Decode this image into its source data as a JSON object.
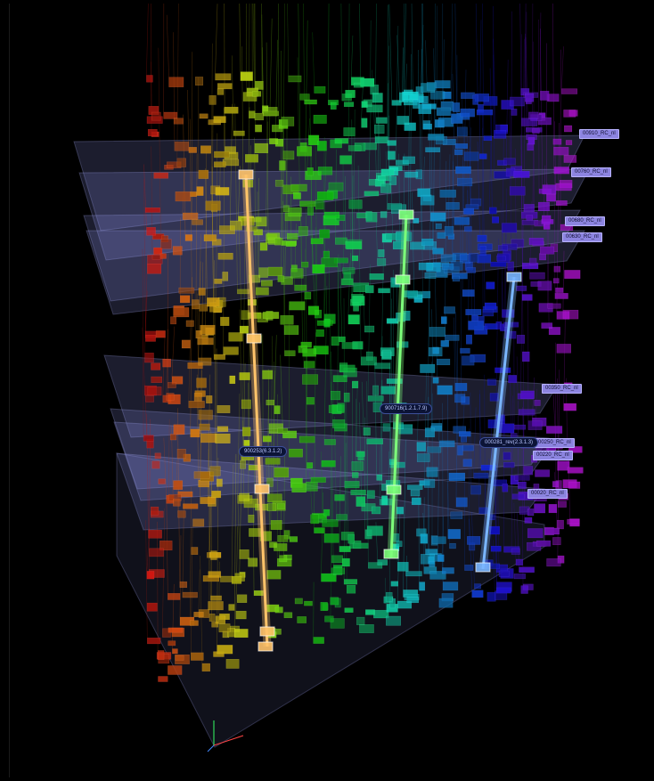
{
  "plane_labels": [
    {
      "text": "00910_RC_nl"
    },
    {
      "text": "00760_RC_nl"
    },
    {
      "text": "00680_RC_nl"
    },
    {
      "text": "00630_RC_nl"
    },
    {
      "text": "00350_RC_nl"
    },
    {
      "text": "00250_RC_nl"
    },
    {
      "text": "00220_RC_nl"
    },
    {
      "text": "00020_RC_nl"
    }
  ],
  "beam_labels": [
    {
      "text": "900253(6.3.1.2)"
    },
    {
      "text": "900716(1.2.1.7.9)"
    },
    {
      "text": "000281_rev(2.3.1.3)"
    }
  ],
  "beam_colors": [
    "#ffc36a",
    "#7dff7a",
    "#7ab6ff"
  ],
  "layer_fill": "#9aa0ff"
}
